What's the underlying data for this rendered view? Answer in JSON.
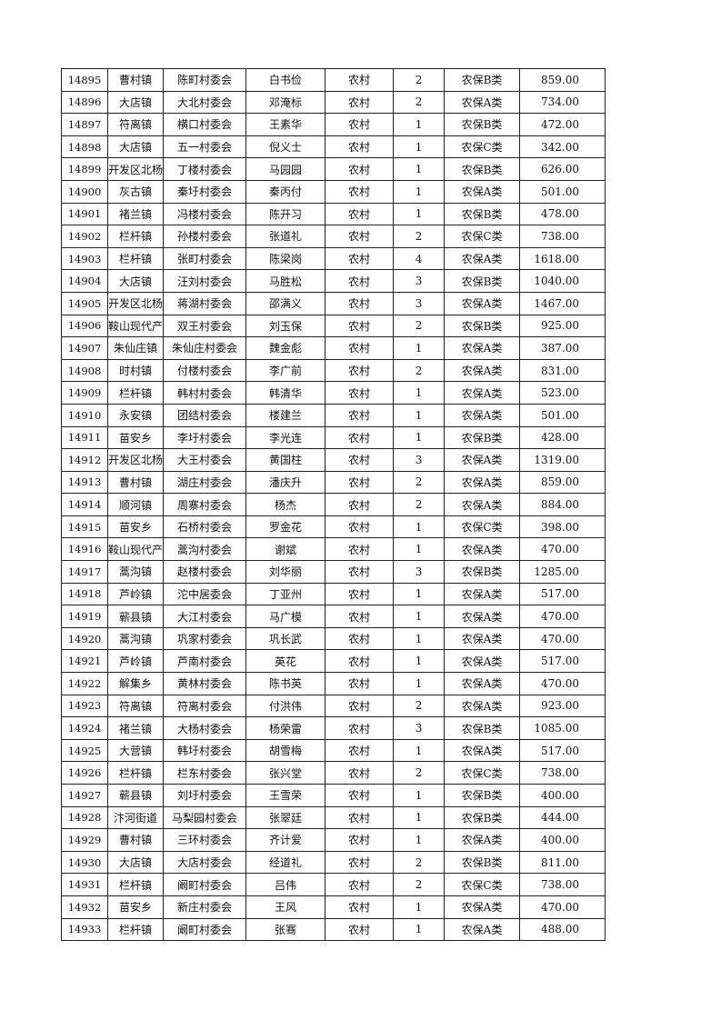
{
  "rows": [
    [
      "14895",
      "曹村镇",
      "陈町村委会",
      "白书俭",
      "农村",
      "2",
      "农保B类",
      "859.00"
    ],
    [
      "14896",
      "大店镇",
      "大北村委会",
      "邓淹标",
      "农村",
      "2",
      "农保A类",
      "734.00"
    ],
    [
      "14897",
      "符离镇",
      "横口村委会",
      "王素华",
      "农村",
      "1",
      "农保B类",
      "472.00"
    ],
    [
      "14898",
      "大店镇",
      "五一村委会",
      "倪义士",
      "农村",
      "1",
      "农保C类",
      "342.00"
    ],
    [
      "14899",
      "开发区北杨",
      "丁楼村委会",
      "马园园",
      "农村",
      "1",
      "农保B类",
      "626.00"
    ],
    [
      "14900",
      "灰古镇",
      "秦圩村委会",
      "秦丙付",
      "农村",
      "1",
      "农保A类",
      "501.00"
    ],
    [
      "14901",
      "褚兰镇",
      "冯楼村委会",
      "陈开习",
      "农村",
      "1",
      "农保B类",
      "478.00"
    ],
    [
      "14902",
      "栏杆镇",
      "孙楼村委会",
      "张道礼",
      "农村",
      "2",
      "农保C类",
      "738.00"
    ],
    [
      "14903",
      "栏杆镇",
      "张町村委会",
      "陈梁岗",
      "农村",
      "4",
      "农保A类",
      "1618.00"
    ],
    [
      "14904",
      "大店镇",
      "汪刘村委会",
      "马胜松",
      "农村",
      "3",
      "农保B类",
      "1040.00"
    ],
    [
      "14905",
      "开发区北杨",
      "蒋湖村委会",
      "邵满义",
      "农村",
      "3",
      "农保A类",
      "1467.00"
    ],
    [
      "14906",
      "鞍山现代产",
      "双王村委会",
      "刘玉保",
      "农村",
      "2",
      "农保B类",
      "925.00"
    ],
    [
      "14907",
      "朱仙庄镇",
      "朱仙庄村委会",
      "魏金彪",
      "农村",
      "1",
      "农保A类",
      "387.00"
    ],
    [
      "14908",
      "时村镇",
      "付楼村委会",
      "李广前",
      "农村",
      "2",
      "农保A类",
      "831.00"
    ],
    [
      "14909",
      "栏杆镇",
      "韩村村委会",
      "韩清华",
      "农村",
      "1",
      "农保A类",
      "523.00"
    ],
    [
      "14910",
      "永安镇",
      "团结村委会",
      "楼建兰",
      "农村",
      "1",
      "农保A类",
      "501.00"
    ],
    [
      "14911",
      "苗安乡",
      "李圩村委会",
      "李光连",
      "农村",
      "1",
      "农保B类",
      "428.00"
    ],
    [
      "14912",
      "开发区北杨",
      "大王村委会",
      "黄国柱",
      "农村",
      "3",
      "农保A类",
      "1319.00"
    ],
    [
      "14913",
      "曹村镇",
      "湖庄村委会",
      "潘庆升",
      "农村",
      "2",
      "农保A类",
      "859.00"
    ],
    [
      "14914",
      "顺河镇",
      "周寨村委会",
      "杨杰",
      "农村",
      "2",
      "农保A类",
      "884.00"
    ],
    [
      "14915",
      "苗安乡",
      "石桥村委会",
      "罗金花",
      "农村",
      "1",
      "农保C类",
      "398.00"
    ],
    [
      "14916",
      "鞍山现代产",
      "蒿沟村委会",
      "谢斌",
      "农村",
      "1",
      "农保A类",
      "470.00"
    ],
    [
      "14917",
      "蒿沟镇",
      "赵楼村委会",
      "刘华丽",
      "农村",
      "3",
      "农保B类",
      "1285.00"
    ],
    [
      "14918",
      "芦岭镇",
      "沱中居委会",
      "丁亚州",
      "农村",
      "1",
      "农保A类",
      "517.00"
    ],
    [
      "14919",
      "蕲县镇",
      "大江村委会",
      "马广模",
      "农村",
      "1",
      "农保A类",
      "470.00"
    ],
    [
      "14920",
      "蒿沟镇",
      "巩家村委会",
      "巩长武",
      "农村",
      "1",
      "农保A类",
      "470.00"
    ],
    [
      "14921",
      "芦岭镇",
      "芦南村委会",
      "英花",
      "农村",
      "1",
      "农保A类",
      "517.00"
    ],
    [
      "14922",
      "解集乡",
      "黄林村委会",
      "陈书英",
      "农村",
      "1",
      "农保A类",
      "470.00"
    ],
    [
      "14923",
      "符离镇",
      "符离村委会",
      "付洪伟",
      "农村",
      "2",
      "农保A类",
      "923.00"
    ],
    [
      "14924",
      "褚兰镇",
      "大杨村委会",
      "杨荣雷",
      "农村",
      "3",
      "农保B类",
      "1085.00"
    ],
    [
      "14925",
      "大营镇",
      "韩圩村委会",
      "胡雪梅",
      "农村",
      "1",
      "农保A类",
      "517.00"
    ],
    [
      "14926",
      "栏杆镇",
      "栏东村委会",
      "张兴堂",
      "农村",
      "2",
      "农保C类",
      "738.00"
    ],
    [
      "14927",
      "蕲县镇",
      "刘圩村委会",
      "王雪荣",
      "农村",
      "1",
      "农保B类",
      "400.00"
    ],
    [
      "14928",
      "汴河街道",
      "马梨园村委会",
      "张翠廷",
      "农村",
      "1",
      "农保B类",
      "444.00"
    ],
    [
      "14929",
      "曹村镇",
      "三环村委会",
      "齐计爱",
      "农村",
      "1",
      "农保A类",
      "400.00"
    ],
    [
      "14930",
      "大店镇",
      "大店村委会",
      "经道礼",
      "农村",
      "2",
      "农保B类",
      "811.00"
    ],
    [
      "14931",
      "栏杆镇",
      "阚町村委会",
      "吕伟",
      "农村",
      "2",
      "农保C类",
      "738.00"
    ],
    [
      "14932",
      "苗安乡",
      "新庄村委会",
      "王风",
      "农村",
      "1",
      "农保A类",
      "470.00"
    ],
    [
      "14933",
      "栏杆镇",
      "阚町村委会",
      "张骞",
      "农村",
      "1",
      "农保A类",
      "488.00"
    ]
  ]
}
